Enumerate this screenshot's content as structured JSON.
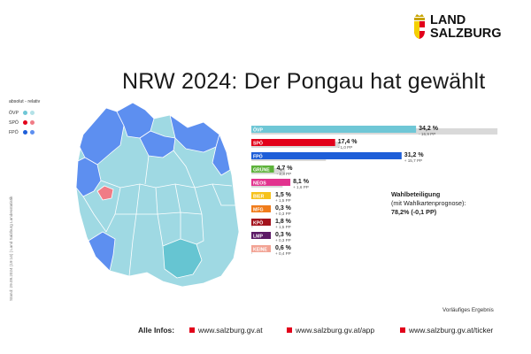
{
  "brand": {
    "line1": "LAND",
    "line2": "SALZBURG"
  },
  "title": "NRW 2024: Der Pongau hat gewählt",
  "legend": {
    "header": "absolut - relativ",
    "items": [
      {
        "label": "ÖVP",
        "abs_color": "#6fc7d6",
        "rel_color": "#b3e1e7"
      },
      {
        "label": "SPÖ",
        "abs_color": "#e2001a",
        "rel_color": "#f07c86"
      },
      {
        "label": "FPÖ",
        "abs_color": "#1e5ed8",
        "rel_color": "#5d8ff0"
      }
    ]
  },
  "side_note": "Stand: 29.09.2024 (19:14) | Land Salzburg Landesstatistik",
  "turnout": {
    "heading": "Wahlbeteiligung",
    "sub": "(mit Wahlkartenprognose):",
    "value": "78,2% (-0,1 PP)"
  },
  "status": "Vorläufiges Ergebnis",
  "footer": {
    "label": "Alle Infos:",
    "links": [
      "www.salzburg.gv.at",
      "www.salzburg.gv.at/app",
      "www.salzburg.gv.at/ticker"
    ]
  },
  "chart_data": {
    "type": "bar",
    "categories": [
      "ÖVP",
      "SPÖ",
      "FPÖ",
      "GRÜNE",
      "NEOS",
      "BIER",
      "MFG",
      "KPÖ",
      "LMP",
      "KEINE"
    ],
    "values": [
      34.2,
      17.4,
      31.2,
      4.7,
      8.1,
      1.5,
      0.3,
      1.8,
      0.3,
      0.6
    ],
    "value_labels": [
      "34,2 %",
      "17,4 %",
      "31,2 %",
      "4,7 %",
      "8,1 %",
      "1,5 %",
      "0,3 %",
      "1,8 %",
      "0,3 %",
      "0,6 %"
    ],
    "change_pp": [
      -16.9,
      -1.0,
      15.7,
      -2.3,
      1.6,
      1.5,
      0.3,
      1.5,
      0.3,
      0.4
    ],
    "change_labels": [
      "- 16,9 PP",
      "- 1,0 PP",
      "+ 15,7 PP",
      "- 2,3 PP",
      "+ 1,6 PP",
      "+ 1,5 PP",
      "+ 0,3 PP",
      "+ 1,5 PP",
      "+ 0,3 PP",
      "+ 0,4 PP"
    ],
    "colors": [
      "#6fc7d6",
      "#e2001a",
      "#1e5ed8",
      "#5db23b",
      "#e2338f",
      "#f6c21c",
      "#f07c1b",
      "#a3121c",
      "#5c1a66",
      "#f2a394"
    ],
    "previous_bar_color": "#d9d9d9",
    "xlim": [
      0,
      52
    ]
  },
  "map": {
    "municipality_colors": {
      "fpo": "#5d8ff0",
      "ovp": "#9fd9e3",
      "ovp_strong": "#66c5d2",
      "spo": "#f07c86"
    }
  }
}
